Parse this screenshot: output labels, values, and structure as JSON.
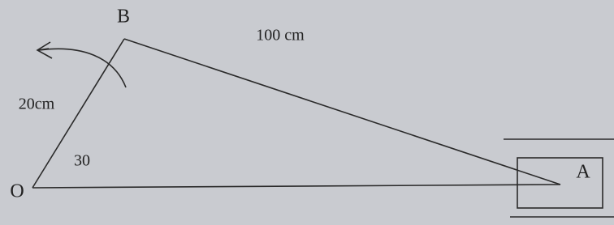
{
  "points": {
    "B": "B",
    "O": "O",
    "A": "A"
  },
  "dimensions": {
    "crank_length": "20cm",
    "rod_length": "100 cm",
    "crank_angle": "30"
  }
}
